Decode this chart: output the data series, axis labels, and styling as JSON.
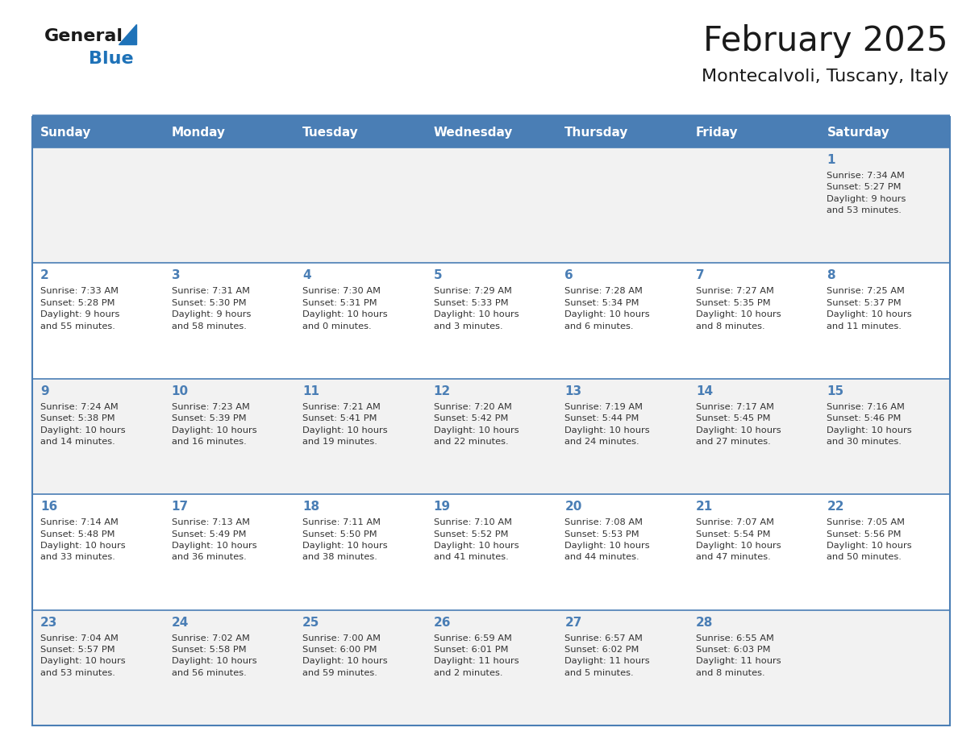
{
  "title": "February 2025",
  "subtitle": "Montecalvoli, Tuscany, Italy",
  "days_of_week": [
    "Sunday",
    "Monday",
    "Tuesday",
    "Wednesday",
    "Thursday",
    "Friday",
    "Saturday"
  ],
  "header_bg_color": "#4a7eb5",
  "header_text_color": "#ffffff",
  "row_bg_even": "#f2f2f2",
  "row_bg_odd": "#ffffff",
  "day_number_color": "#4a7eb5",
  "info_text_color": "#333333",
  "border_color": "#4a7eb5",
  "separator_color": "#4a7eb5",
  "title_color": "#1a1a1a",
  "subtitle_color": "#1a1a1a",
  "logo_general_color": "#1a1a1a",
  "logo_blue_color": "#1e72b8",
  "weeks": [
    {
      "days": [
        {
          "day": null,
          "info": ""
        },
        {
          "day": null,
          "info": ""
        },
        {
          "day": null,
          "info": ""
        },
        {
          "day": null,
          "info": ""
        },
        {
          "day": null,
          "info": ""
        },
        {
          "day": null,
          "info": ""
        },
        {
          "day": 1,
          "info": "Sunrise: 7:34 AM\nSunset: 5:27 PM\nDaylight: 9 hours\nand 53 minutes."
        }
      ]
    },
    {
      "days": [
        {
          "day": 2,
          "info": "Sunrise: 7:33 AM\nSunset: 5:28 PM\nDaylight: 9 hours\nand 55 minutes."
        },
        {
          "day": 3,
          "info": "Sunrise: 7:31 AM\nSunset: 5:30 PM\nDaylight: 9 hours\nand 58 minutes."
        },
        {
          "day": 4,
          "info": "Sunrise: 7:30 AM\nSunset: 5:31 PM\nDaylight: 10 hours\nand 0 minutes."
        },
        {
          "day": 5,
          "info": "Sunrise: 7:29 AM\nSunset: 5:33 PM\nDaylight: 10 hours\nand 3 minutes."
        },
        {
          "day": 6,
          "info": "Sunrise: 7:28 AM\nSunset: 5:34 PM\nDaylight: 10 hours\nand 6 minutes."
        },
        {
          "day": 7,
          "info": "Sunrise: 7:27 AM\nSunset: 5:35 PM\nDaylight: 10 hours\nand 8 minutes."
        },
        {
          "day": 8,
          "info": "Sunrise: 7:25 AM\nSunset: 5:37 PM\nDaylight: 10 hours\nand 11 minutes."
        }
      ]
    },
    {
      "days": [
        {
          "day": 9,
          "info": "Sunrise: 7:24 AM\nSunset: 5:38 PM\nDaylight: 10 hours\nand 14 minutes."
        },
        {
          "day": 10,
          "info": "Sunrise: 7:23 AM\nSunset: 5:39 PM\nDaylight: 10 hours\nand 16 minutes."
        },
        {
          "day": 11,
          "info": "Sunrise: 7:21 AM\nSunset: 5:41 PM\nDaylight: 10 hours\nand 19 minutes."
        },
        {
          "day": 12,
          "info": "Sunrise: 7:20 AM\nSunset: 5:42 PM\nDaylight: 10 hours\nand 22 minutes."
        },
        {
          "day": 13,
          "info": "Sunrise: 7:19 AM\nSunset: 5:44 PM\nDaylight: 10 hours\nand 24 minutes."
        },
        {
          "day": 14,
          "info": "Sunrise: 7:17 AM\nSunset: 5:45 PM\nDaylight: 10 hours\nand 27 minutes."
        },
        {
          "day": 15,
          "info": "Sunrise: 7:16 AM\nSunset: 5:46 PM\nDaylight: 10 hours\nand 30 minutes."
        }
      ]
    },
    {
      "days": [
        {
          "day": 16,
          "info": "Sunrise: 7:14 AM\nSunset: 5:48 PM\nDaylight: 10 hours\nand 33 minutes."
        },
        {
          "day": 17,
          "info": "Sunrise: 7:13 AM\nSunset: 5:49 PM\nDaylight: 10 hours\nand 36 minutes."
        },
        {
          "day": 18,
          "info": "Sunrise: 7:11 AM\nSunset: 5:50 PM\nDaylight: 10 hours\nand 38 minutes."
        },
        {
          "day": 19,
          "info": "Sunrise: 7:10 AM\nSunset: 5:52 PM\nDaylight: 10 hours\nand 41 minutes."
        },
        {
          "day": 20,
          "info": "Sunrise: 7:08 AM\nSunset: 5:53 PM\nDaylight: 10 hours\nand 44 minutes."
        },
        {
          "day": 21,
          "info": "Sunrise: 7:07 AM\nSunset: 5:54 PM\nDaylight: 10 hours\nand 47 minutes."
        },
        {
          "day": 22,
          "info": "Sunrise: 7:05 AM\nSunset: 5:56 PM\nDaylight: 10 hours\nand 50 minutes."
        }
      ]
    },
    {
      "days": [
        {
          "day": 23,
          "info": "Sunrise: 7:04 AM\nSunset: 5:57 PM\nDaylight: 10 hours\nand 53 minutes."
        },
        {
          "day": 24,
          "info": "Sunrise: 7:02 AM\nSunset: 5:58 PM\nDaylight: 10 hours\nand 56 minutes."
        },
        {
          "day": 25,
          "info": "Sunrise: 7:00 AM\nSunset: 6:00 PM\nDaylight: 10 hours\nand 59 minutes."
        },
        {
          "day": 26,
          "info": "Sunrise: 6:59 AM\nSunset: 6:01 PM\nDaylight: 11 hours\nand 2 minutes."
        },
        {
          "day": 27,
          "info": "Sunrise: 6:57 AM\nSunset: 6:02 PM\nDaylight: 11 hours\nand 5 minutes."
        },
        {
          "day": 28,
          "info": "Sunrise: 6:55 AM\nSunset: 6:03 PM\nDaylight: 11 hours\nand 8 minutes."
        },
        {
          "day": null,
          "info": ""
        }
      ]
    }
  ],
  "fig_width": 11.88,
  "fig_height": 9.18,
  "dpi": 100
}
